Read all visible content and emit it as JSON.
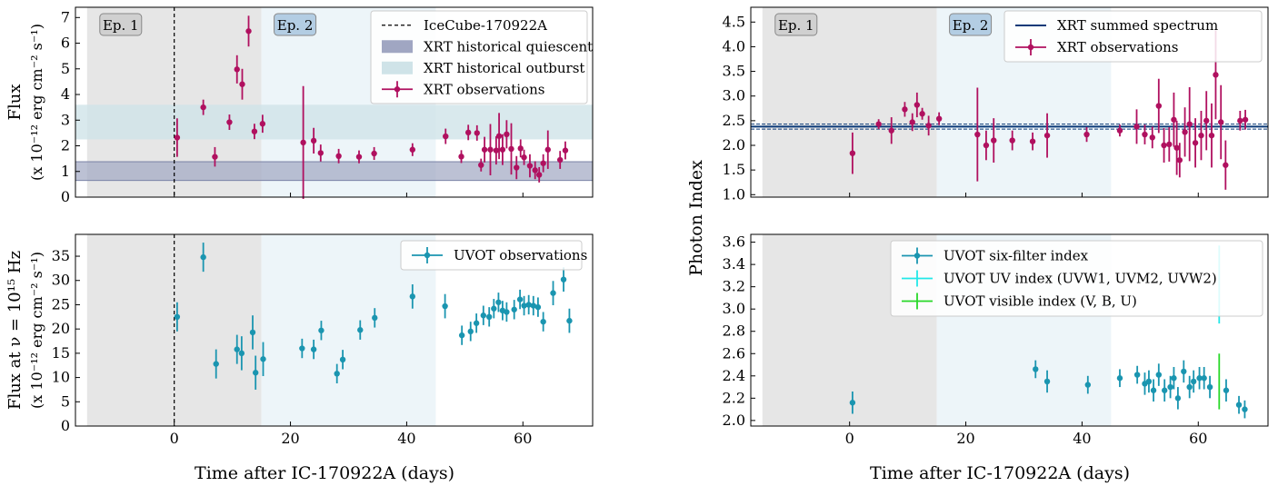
{
  "figure": {
    "xlabel": "Time after IC-170922A (days)",
    "shared_ylabel_right": "Photon Index"
  },
  "colors": {
    "xrt": "#b0105f",
    "uvot": "#1a95b0",
    "uvot_uv": "#22e8e8",
    "uvot_vis": "#28d828",
    "summed": "#0b3a78",
    "ep1_shade": "#e6e6e6",
    "ep2_shade": "#edf5f9",
    "quiescent": "#a0a6c2",
    "outburst": "#cfe3e8"
  },
  "chart_data": [
    {
      "id": "xrt-flux",
      "type": "scatter",
      "ylabel": [
        "Flux",
        "(x 10⁻¹² erg cm⁻² s⁻¹)"
      ],
      "xlim": [
        -17,
        72
      ],
      "ylim": [
        0,
        7.4
      ],
      "xticks": [
        0,
        20,
        40,
        60
      ],
      "yticks": [
        0,
        1,
        2,
        3,
        4,
        5,
        6,
        7
      ],
      "show_xticklabels": false,
      "ep1": [
        -15,
        15
      ],
      "ep2": [
        15,
        45
      ],
      "ep_labels": [
        "Ep. 1",
        "Ep. 2"
      ],
      "vline": 0,
      "quiescent_band": [
        0.65,
        1.38
      ],
      "outburst_band": [
        2.25,
        3.6
      ],
      "legend": [
        "IceCube-170922A",
        "XRT historical quiescent",
        "XRT historical outburst",
        "XRT observations"
      ],
      "series": [
        {
          "name": "XRT observations",
          "points": [
            [
              0.5,
              2.32,
              0.75
            ],
            [
              5,
              3.5,
              0.3
            ],
            [
              7,
              1.57,
              0.38
            ],
            [
              9.5,
              2.92,
              0.3
            ],
            [
              10.8,
              4.98,
              0.55
            ],
            [
              11.7,
              4.4,
              0.6
            ],
            [
              12.8,
              6.47,
              0.6
            ],
            [
              13.8,
              2.56,
              0.3
            ],
            [
              15.2,
              2.86,
              0.35
            ],
            [
              22.2,
              2.13,
              2.2
            ],
            [
              24,
              2.2,
              0.5
            ],
            [
              25.2,
              1.72,
              0.33
            ],
            [
              28.3,
              1.6,
              0.28
            ],
            [
              31.8,
              1.57,
              0.25
            ],
            [
              34.4,
              1.7,
              0.25
            ],
            [
              41,
              1.85,
              0.25
            ],
            [
              46.7,
              2.37,
              0.3
            ],
            [
              49.4,
              1.58,
              0.25
            ],
            [
              50.6,
              2.52,
              0.3
            ],
            [
              52.1,
              2.5,
              0.3
            ],
            [
              52.8,
              1.25,
              0.25
            ],
            [
              53.4,
              1.85,
              0.5
            ],
            [
              54.4,
              1.85,
              1.0
            ],
            [
              55.4,
              1.82,
              0.55
            ],
            [
              55.9,
              2.38,
              0.9
            ],
            [
              56.5,
              1.85,
              0.6
            ],
            [
              57.2,
              2.45,
              0.55
            ],
            [
              58,
              1.88,
              1.0
            ],
            [
              58.9,
              1.15,
              0.45
            ],
            [
              59.6,
              1.9,
              0.35
            ],
            [
              60.2,
              1.55,
              0.3
            ],
            [
              61.2,
              1.22,
              0.45
            ],
            [
              62.1,
              1.05,
              0.35
            ],
            [
              62.8,
              0.87,
              0.3
            ],
            [
              63.5,
              1.32,
              0.35
            ],
            [
              64.3,
              1.85,
              0.75
            ],
            [
              66.4,
              1.45,
              0.35
            ],
            [
              67.3,
              1.82,
              0.35
            ]
          ]
        }
      ]
    },
    {
      "id": "xrt-index",
      "type": "scatter",
      "xlim": [
        -17,
        72
      ],
      "ylim": [
        0.95,
        4.8
      ],
      "xticks": [
        0,
        20,
        40,
        60
      ],
      "yticks": [
        1.0,
        1.5,
        2.0,
        2.5,
        3.0,
        3.5,
        4.0,
        4.5
      ],
      "show_xticklabels": false,
      "ep1": [
        -15,
        15
      ],
      "ep2": [
        15,
        45
      ],
      "ep_labels": [
        "Ep. 1",
        "Ep. 2"
      ],
      "summed_index": 2.38,
      "summed_err": 0.05,
      "legend": [
        "XRT summed spectrum",
        "XRT observations"
      ],
      "series": [
        {
          "name": "XRT observations",
          "points": [
            [
              0.5,
              1.84,
              0.42
            ],
            [
              5,
              2.43,
              0.1
            ],
            [
              7.2,
              2.3,
              0.27
            ],
            [
              9.5,
              2.73,
              0.15
            ],
            [
              10.8,
              2.47,
              0.18
            ],
            [
              11.6,
              2.82,
              0.25
            ],
            [
              12.5,
              2.64,
              0.12
            ],
            [
              13.6,
              2.4,
              0.2
            ],
            [
              15.4,
              2.54,
              0.13
            ],
            [
              22,
              2.22,
              0.95
            ],
            [
              23.5,
              2.0,
              0.3
            ],
            [
              24.8,
              2.1,
              0.45
            ],
            [
              28,
              2.1,
              0.2
            ],
            [
              31.5,
              2.08,
              0.18
            ],
            [
              34,
              2.2,
              0.45
            ],
            [
              40.8,
              2.22,
              0.15
            ],
            [
              46.5,
              2.3,
              0.12
            ],
            [
              49.4,
              2.38,
              0.35
            ],
            [
              50.8,
              2.22,
              0.2
            ],
            [
              52.1,
              2.16,
              0.22
            ],
            [
              53.2,
              2.8,
              0.55
            ],
            [
              54.1,
              2.0,
              0.35
            ],
            [
              55,
              2.02,
              0.35
            ],
            [
              55.8,
              2.52,
              0.55
            ],
            [
              56.3,
              1.95,
              0.55
            ],
            [
              56.8,
              1.7,
              0.35
            ],
            [
              57.7,
              2.27,
              0.5
            ],
            [
              58.5,
              2.43,
              0.75
            ],
            [
              59.5,
              2.05,
              0.5
            ],
            [
              60.5,
              2.2,
              0.5
            ],
            [
              61.4,
              2.5,
              0.6
            ],
            [
              62.3,
              2.2,
              0.65
            ],
            [
              63,
              3.43,
              0.9
            ],
            [
              63.9,
              2.47,
              0.75
            ],
            [
              64.7,
              1.6,
              0.5
            ],
            [
              67.2,
              2.5,
              0.2
            ],
            [
              68.1,
              2.52,
              0.2
            ]
          ]
        }
      ]
    },
    {
      "id": "uvot-flux",
      "type": "scatter",
      "ylabel": [
        "Flux at ν = 10¹⁵ Hz",
        "(x 10⁻¹² erg cm⁻² s⁻¹)"
      ],
      "xlim": [
        -17,
        72
      ],
      "ylim": [
        0,
        39.5
      ],
      "xticks": [
        0,
        20,
        40,
        60
      ],
      "yticks": [
        0,
        5,
        10,
        15,
        20,
        25,
        30,
        35
      ],
      "show_xticklabels": true,
      "ep1": [
        -15,
        15
      ],
      "ep2": [
        15,
        45
      ],
      "vline": 0,
      "legend": [
        "UVOT observations"
      ],
      "series": [
        {
          "name": "UVOT observations",
          "points": [
            [
              0.5,
              22.5,
              3.0
            ],
            [
              5,
              34.8,
              3.0
            ],
            [
              7.2,
              12.8,
              3.0
            ],
            [
              10.8,
              15.8,
              3.0
            ],
            [
              11.6,
              15.0,
              3.5
            ],
            [
              13.5,
              19.3,
              3.5
            ],
            [
              14,
              11.0,
              3.5
            ],
            [
              15.3,
              13.8,
              3.5
            ],
            [
              22,
              16.0,
              2.0
            ],
            [
              24,
              15.8,
              2.0
            ],
            [
              25.3,
              19.7,
              2.0
            ],
            [
              28,
              10.8,
              2.0
            ],
            [
              29,
              13.7,
              2.0
            ],
            [
              32,
              19.8,
              2.0
            ],
            [
              34.5,
              22.3,
              2.0
            ],
            [
              41,
              26.7,
              2.5
            ],
            [
              46.6,
              24.7,
              2.5
            ],
            [
              49.5,
              18.7,
              2.0
            ],
            [
              51,
              19.5,
              2.0
            ],
            [
              52,
              21.2,
              2.0
            ],
            [
              53.2,
              22.8,
              2.0
            ],
            [
              54.2,
              22.5,
              2.0
            ],
            [
              55,
              24.2,
              2.0
            ],
            [
              55.8,
              25.5,
              2.0
            ],
            [
              56.5,
              23.8,
              2.0
            ],
            [
              57.2,
              23.5,
              2.0
            ],
            [
              58.5,
              24.0,
              2.0
            ],
            [
              59.5,
              26.1,
              2.0
            ],
            [
              60.2,
              24.8,
              2.0
            ],
            [
              61,
              25.0,
              2.0
            ],
            [
              61.8,
              24.8,
              2.0
            ],
            [
              62.6,
              24.5,
              2.0
            ],
            [
              63.5,
              21.5,
              2.0
            ],
            [
              65.2,
              27.4,
              2.5
            ],
            [
              67,
              30.2,
              2.5
            ],
            [
              68,
              21.7,
              2.5
            ]
          ]
        }
      ]
    },
    {
      "id": "uvot-index",
      "type": "scatter",
      "xlim": [
        -17,
        72
      ],
      "ylim": [
        1.95,
        3.67
      ],
      "xticks": [
        0,
        20,
        40,
        60
      ],
      "yticks": [
        2.0,
        2.2,
        2.4,
        2.6,
        2.8,
        3.0,
        3.2,
        3.4,
        3.6
      ],
      "show_xticklabels": true,
      "ep1": [
        -15,
        15
      ],
      "ep2": [
        15,
        45
      ],
      "legend": [
        "UVOT six-filter index",
        "UVOT UV index (UVW1, UVM2, UVW2)",
        "UVOT visible index (V, B, U)"
      ],
      "series": [
        {
          "name": "UVOT six-filter index",
          "points": [
            [
              0.5,
              2.16,
              0.1
            ],
            [
              32,
              2.46,
              0.08
            ],
            [
              34,
              2.35,
              0.1
            ],
            [
              41,
              2.32,
              0.08
            ],
            [
              46.5,
              2.38,
              0.08
            ],
            [
              49.5,
              2.41,
              0.08
            ],
            [
              50.8,
              2.33,
              0.1
            ],
            [
              51.5,
              2.35,
              0.1
            ],
            [
              52.3,
              2.27,
              0.1
            ],
            [
              53.2,
              2.41,
              0.1
            ],
            [
              54.2,
              2.27,
              0.1
            ],
            [
              55.2,
              2.3,
              0.1
            ],
            [
              55.8,
              2.38,
              0.1
            ],
            [
              56.5,
              2.2,
              0.1
            ],
            [
              57.5,
              2.44,
              0.1
            ],
            [
              58.5,
              2.3,
              0.1
            ],
            [
              59.2,
              2.35,
              0.1
            ],
            [
              60.2,
              2.38,
              0.1
            ],
            [
              61,
              2.38,
              0.1
            ],
            [
              62,
              2.3,
              0.1
            ],
            [
              64.8,
              2.27,
              0.1
            ],
            [
              67,
              2.14,
              0.08
            ],
            [
              68,
              2.1,
              0.08
            ]
          ]
        },
        {
          "name": "UVOT UV index (UVW1, UVM2, UVW2)",
          "points": [
            [
              63.6,
              3.22,
              0.35
            ]
          ]
        },
        {
          "name": "UVOT visible index (V, B, U)",
          "points": [
            [
              63.6,
              2.35,
              0.25
            ]
          ]
        }
      ]
    }
  ]
}
